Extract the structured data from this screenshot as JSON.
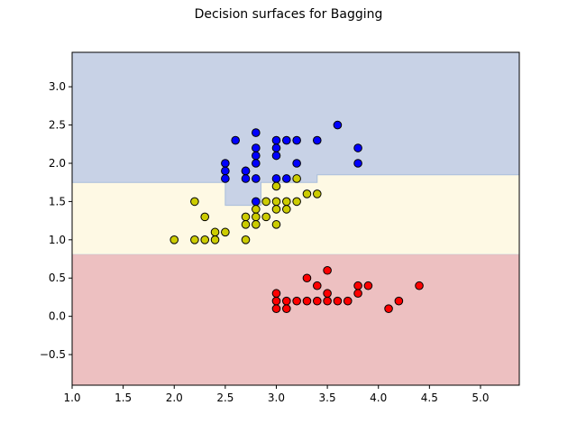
{
  "chart_data": {
    "type": "scatter",
    "title": "Decision surfaces for Bagging",
    "xlabel": "",
    "ylabel": "",
    "xlim": [
      1.0,
      5.38
    ],
    "ylim": [
      -0.9,
      3.45
    ],
    "x_ticks": [
      1.0,
      1.5,
      2.0,
      2.5,
      3.0,
      3.5,
      4.0,
      4.5,
      5.0
    ],
    "x_tick_labels": [
      "1.0",
      "1.5",
      "2.0",
      "2.5",
      "3.0",
      "3.5",
      "4.0",
      "4.5",
      "5.0"
    ],
    "y_ticks": [
      -0.5,
      0.0,
      0.5,
      1.0,
      1.5,
      2.0,
      2.5,
      3.0
    ],
    "y_tick_labels": [
      "−0.5",
      "0.0",
      "0.5",
      "1.0",
      "1.5",
      "2.0",
      "2.5",
      "3.0"
    ],
    "grid": false,
    "colors": {
      "blue_region": "#c8d2e6",
      "yellow_region": "#fef9e4",
      "red_region": "#edc0c1",
      "boundary": "#a9bedb",
      "blue_points": "#0000ff",
      "yellow_points": "#cccc00",
      "red_points": "#ff0000"
    },
    "regions": {
      "red_yellow_boundary_y": 0.81,
      "yellow_blue_boundary": [
        [
          1.0,
          1.75
        ],
        [
          2.5,
          1.75
        ],
        [
          2.5,
          1.45
        ],
        [
          2.85,
          1.45
        ],
        [
          2.85,
          1.75
        ],
        [
          3.4,
          1.75
        ],
        [
          3.4,
          1.85
        ],
        [
          5.38,
          1.85
        ]
      ]
    },
    "series": [
      {
        "color": "#0000ff",
        "points": [
          [
            2.6,
            2.3
          ],
          [
            2.5,
            2.0
          ],
          [
            2.5,
            1.9
          ],
          [
            2.5,
            1.8
          ],
          [
            2.7,
            1.9
          ],
          [
            2.7,
            1.8
          ],
          [
            2.7,
            1.9
          ],
          [
            2.8,
            2.4
          ],
          [
            2.8,
            2.2
          ],
          [
            2.8,
            2.1
          ],
          [
            2.8,
            2.0
          ],
          [
            2.8,
            1.8
          ],
          [
            2.8,
            1.5
          ],
          [
            3.0,
            2.3
          ],
          [
            3.0,
            2.2
          ],
          [
            3.0,
            2.1
          ],
          [
            3.0,
            1.8
          ],
          [
            3.1,
            2.3
          ],
          [
            3.1,
            1.8
          ],
          [
            3.2,
            2.3
          ],
          [
            3.2,
            2.0
          ],
          [
            3.4,
            2.3
          ],
          [
            3.6,
            2.5
          ],
          [
            3.8,
            2.2
          ],
          [
            3.8,
            2.0
          ]
        ]
      },
      {
        "color": "#cccc00",
        "points": [
          [
            2.0,
            1.0
          ],
          [
            2.2,
            1.5
          ],
          [
            2.2,
            1.0
          ],
          [
            2.3,
            1.3
          ],
          [
            2.3,
            1.0
          ],
          [
            2.4,
            1.1
          ],
          [
            2.4,
            1.0
          ],
          [
            2.5,
            1.1
          ],
          [
            2.7,
            1.3
          ],
          [
            2.7,
            1.2
          ],
          [
            2.7,
            1.0
          ],
          [
            2.8,
            1.4
          ],
          [
            2.8,
            1.3
          ],
          [
            2.8,
            1.2
          ],
          [
            2.9,
            1.5
          ],
          [
            2.9,
            1.3
          ],
          [
            3.0,
            1.7
          ],
          [
            3.0,
            1.5
          ],
          [
            3.0,
            1.4
          ],
          [
            3.0,
            1.2
          ],
          [
            3.1,
            1.5
          ],
          [
            3.1,
            1.4
          ],
          [
            3.2,
            1.8
          ],
          [
            3.2,
            1.5
          ],
          [
            3.3,
            1.6
          ],
          [
            3.4,
            1.6
          ]
        ]
      },
      {
        "color": "#ff0000",
        "points": [
          [
            3.0,
            0.3
          ],
          [
            3.0,
            0.2
          ],
          [
            3.0,
            0.1
          ],
          [
            3.1,
            0.2
          ],
          [
            3.1,
            0.1
          ],
          [
            3.2,
            0.2
          ],
          [
            3.3,
            0.5
          ],
          [
            3.3,
            0.2
          ],
          [
            3.4,
            0.4
          ],
          [
            3.4,
            0.2
          ],
          [
            3.5,
            0.6
          ],
          [
            3.5,
            0.3
          ],
          [
            3.5,
            0.2
          ],
          [
            3.6,
            0.2
          ],
          [
            3.7,
            0.2
          ],
          [
            3.8,
            0.4
          ],
          [
            3.8,
            0.3
          ],
          [
            3.9,
            0.4
          ],
          [
            4.1,
            0.1
          ],
          [
            4.2,
            0.2
          ],
          [
            4.4,
            0.4
          ]
        ]
      }
    ]
  }
}
